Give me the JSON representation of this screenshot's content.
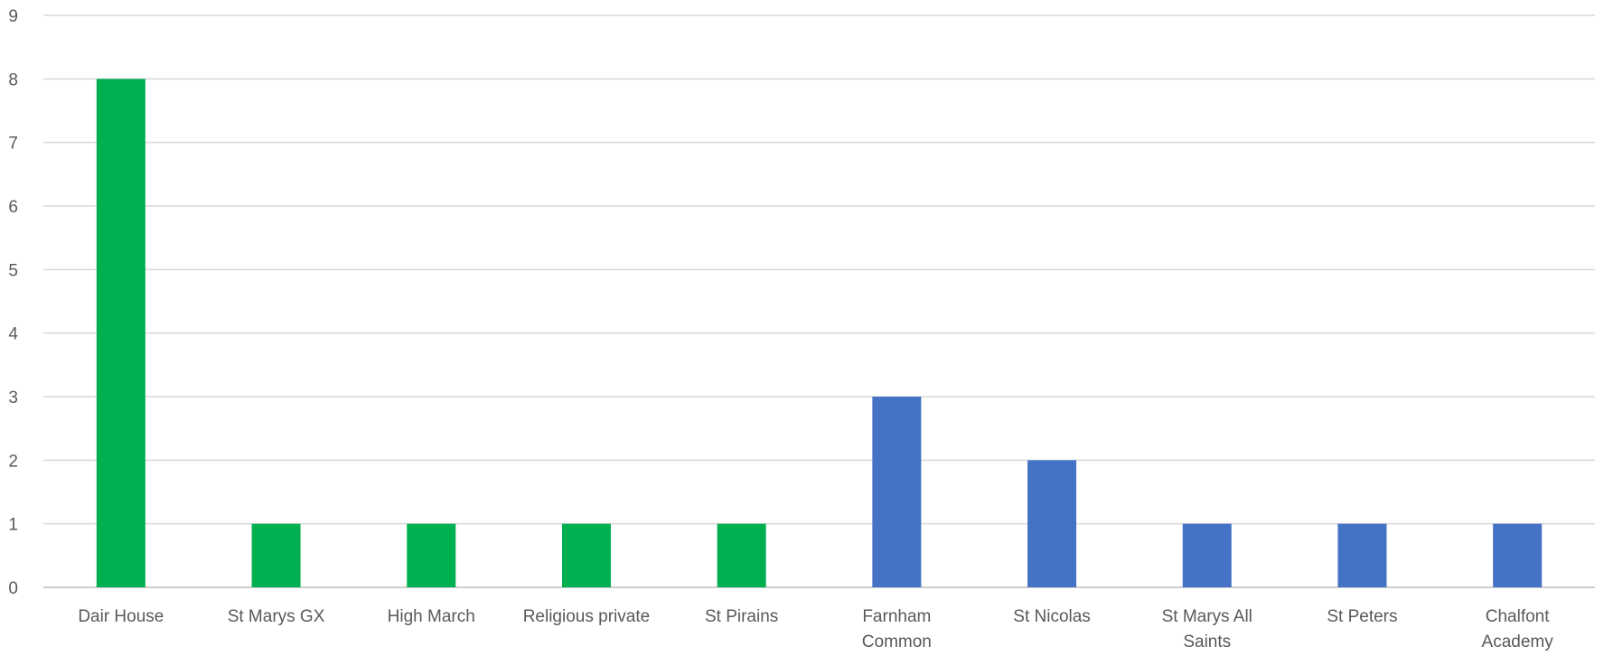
{
  "chart_data": {
    "type": "bar",
    "title": "",
    "xlabel": "",
    "ylabel": "",
    "ylim": [
      0,
      9
    ],
    "yticks": [
      0,
      1,
      2,
      3,
      4,
      5,
      6,
      7,
      8,
      9
    ],
    "grid": true,
    "legend": "none",
    "categories": [
      [
        "Dair House"
      ],
      [
        "St Marys GX"
      ],
      [
        "High March"
      ],
      [
        "Religious private"
      ],
      [
        "St Pirains"
      ],
      [
        "Farnham",
        "Common"
      ],
      [
        "St Nicolas"
      ],
      [
        "St Marys All",
        "Saints"
      ],
      [
        "St Peters"
      ],
      [
        "Chalfont",
        "Academy"
      ]
    ],
    "values": [
      8,
      1,
      1,
      1,
      1,
      3,
      2,
      1,
      1,
      1
    ],
    "bar_colors": [
      "#00b050",
      "#00b050",
      "#00b050",
      "#00b050",
      "#00b050",
      "#4472c4",
      "#4472c4",
      "#4472c4",
      "#4472c4",
      "#4472c4"
    ]
  }
}
